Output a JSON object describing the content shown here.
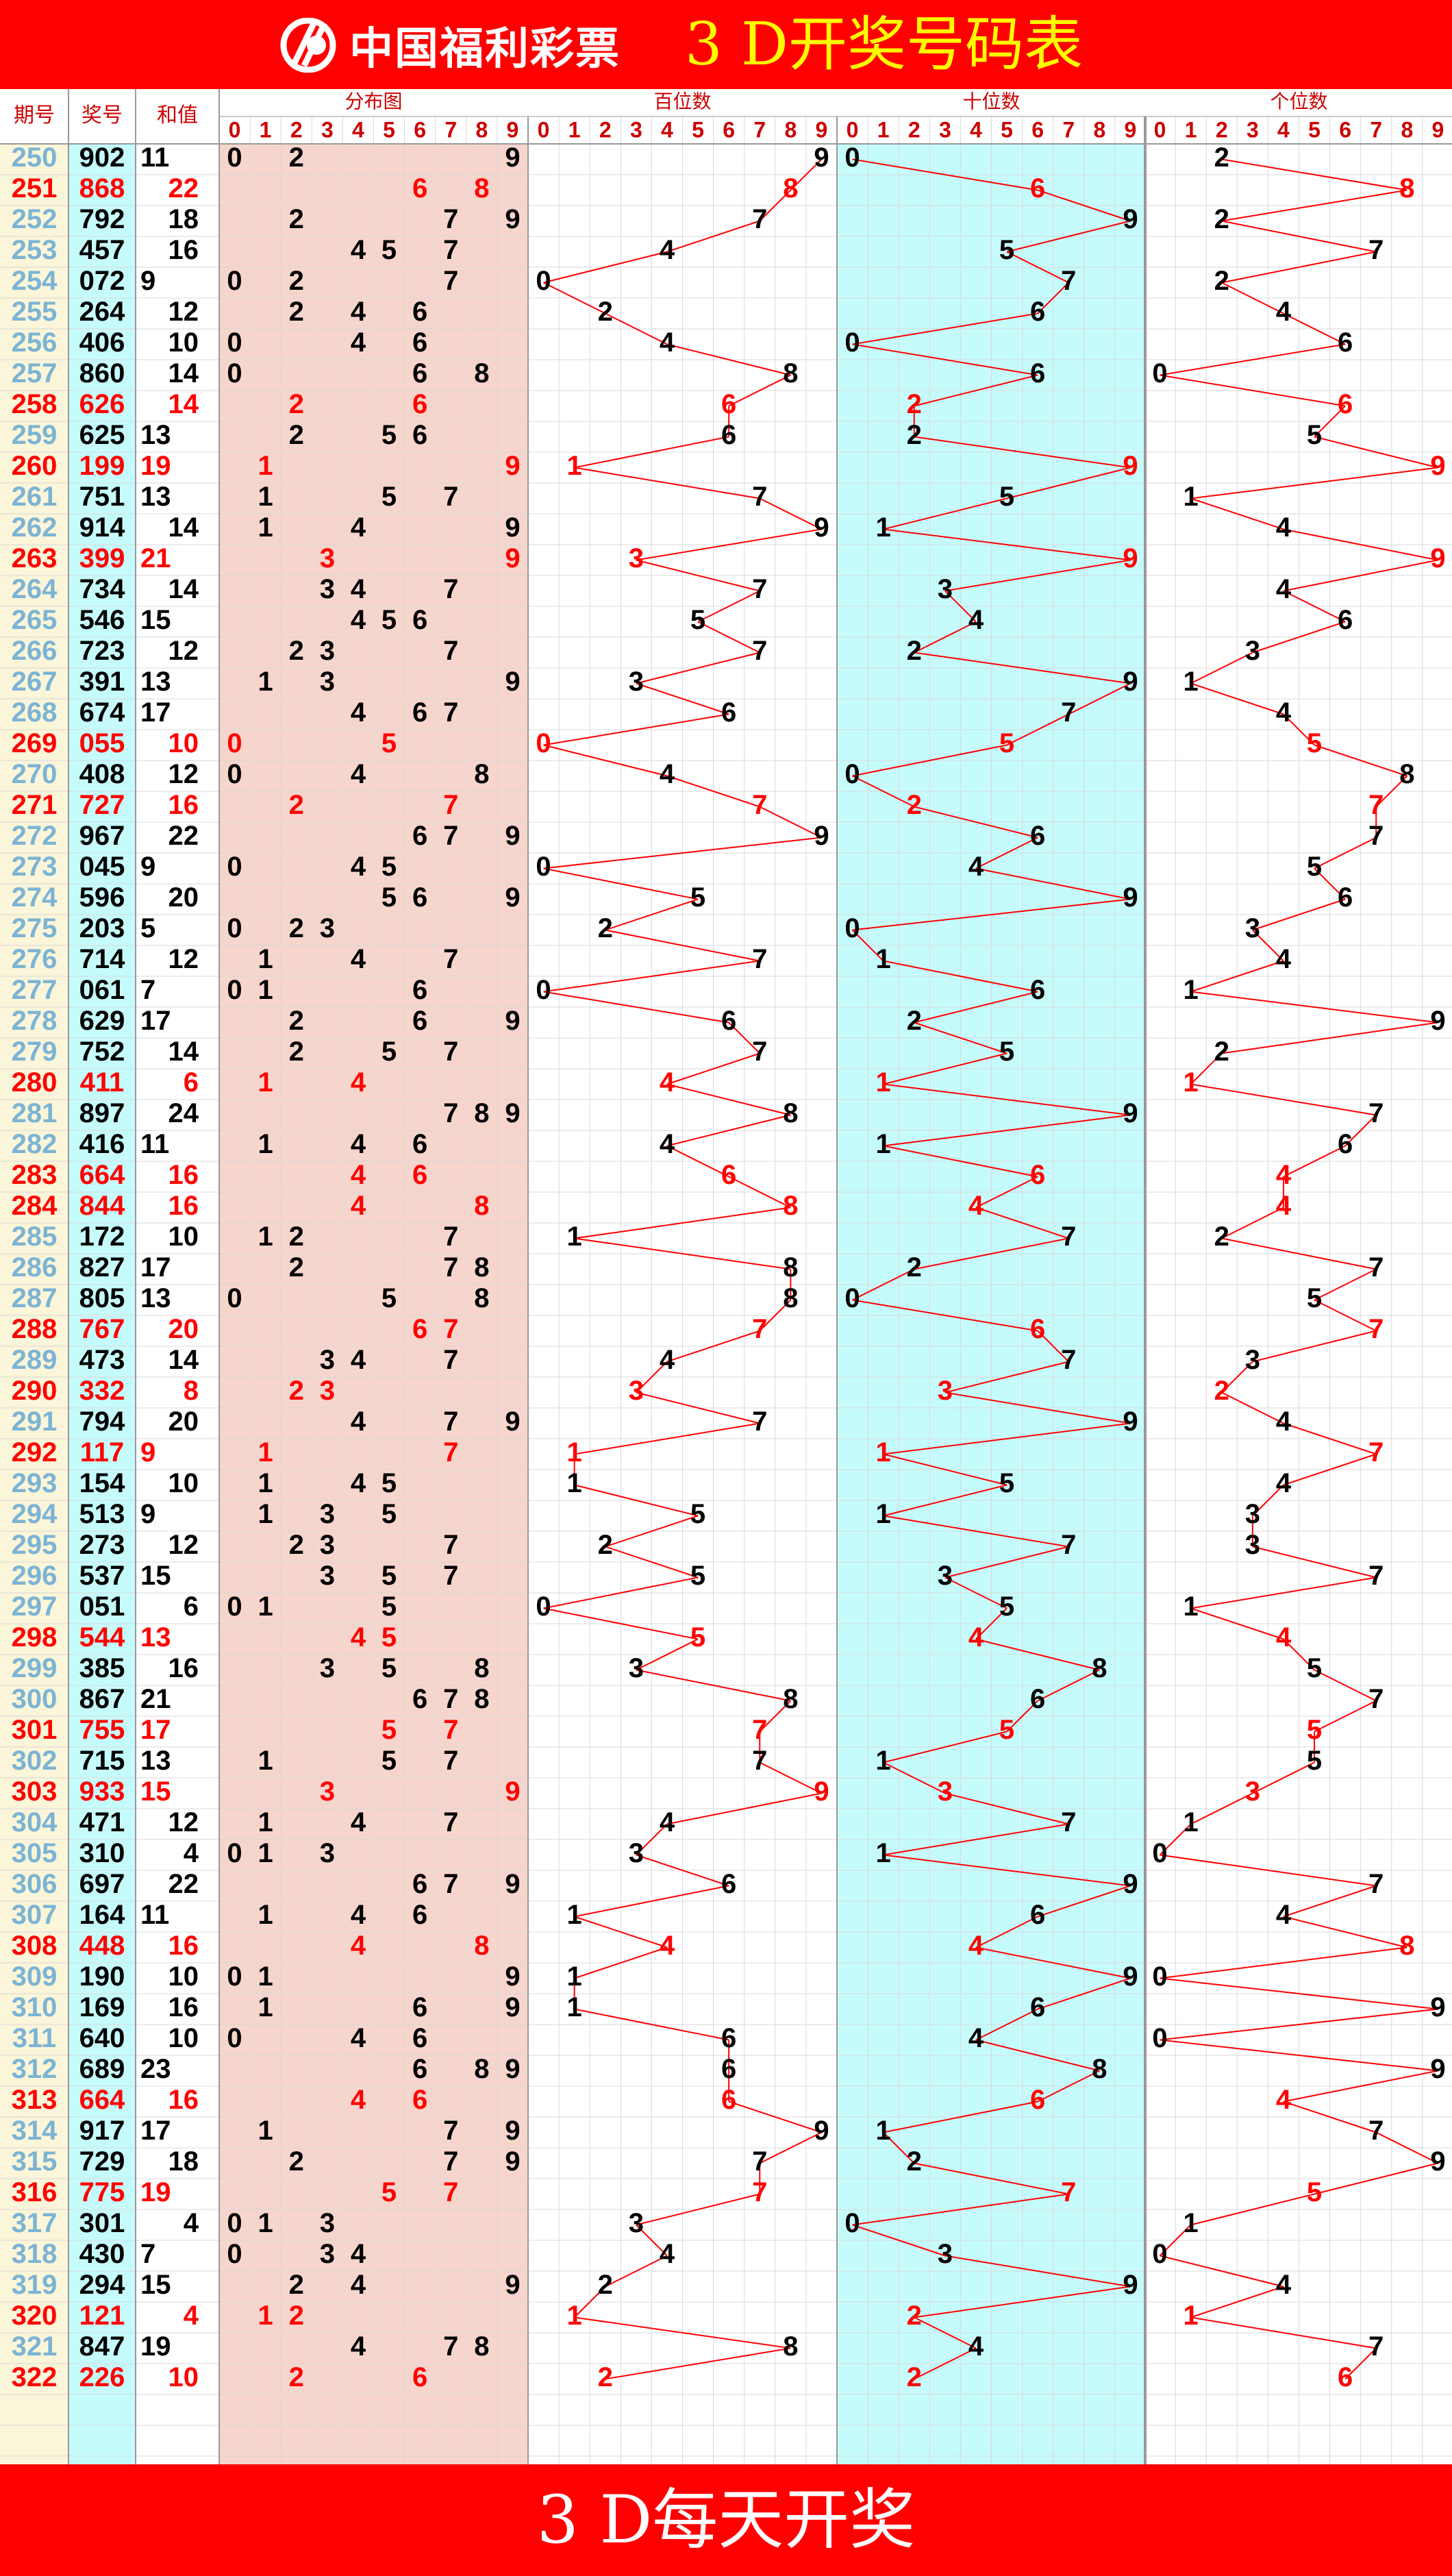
{
  "header": {
    "logo_text": "中国福利彩票",
    "title": "3 D开奖号码表"
  },
  "columns": {
    "issue": "期号",
    "number": "奖号",
    "sum": "和值",
    "distribution": "分布图",
    "hundreds": "百位数",
    "tens": "十位数",
    "units": "个位数",
    "digits": [
      "0",
      "1",
      "2",
      "3",
      "4",
      "5",
      "6",
      "7",
      "8",
      "9"
    ]
  },
  "footer": {
    "text": "3 D每天开奖"
  },
  "colors": {
    "red": "#ff0000",
    "black": "#000000",
    "issue": "#7bb4d4",
    "dist_bg": "#f6d5cd",
    "tens_bg": "#c6fbfb",
    "line": "#ff0000"
  },
  "chart_data": {
    "type": "table",
    "draws": [
      {
        "issue": "250",
        "number": "902",
        "sum": 11
      },
      {
        "issue": "251",
        "number": "868",
        "sum": 22
      },
      {
        "issue": "252",
        "number": "792",
        "sum": 18
      },
      {
        "issue": "253",
        "number": "457",
        "sum": 16
      },
      {
        "issue": "254",
        "number": "072",
        "sum": 9
      },
      {
        "issue": "255",
        "number": "264",
        "sum": 12
      },
      {
        "issue": "256",
        "number": "406",
        "sum": 10
      },
      {
        "issue": "257",
        "number": "860",
        "sum": 14
      },
      {
        "issue": "258",
        "number": "626",
        "sum": 14
      },
      {
        "issue": "259",
        "number": "625",
        "sum": 13
      },
      {
        "issue": "260",
        "number": "199",
        "sum": 19
      },
      {
        "issue": "261",
        "number": "751",
        "sum": 13
      },
      {
        "issue": "262",
        "number": "914",
        "sum": 14
      },
      {
        "issue": "263",
        "number": "399",
        "sum": 21
      },
      {
        "issue": "264",
        "number": "734",
        "sum": 14
      },
      {
        "issue": "265",
        "number": "546",
        "sum": 15
      },
      {
        "issue": "266",
        "number": "723",
        "sum": 12
      },
      {
        "issue": "267",
        "number": "391",
        "sum": 13
      },
      {
        "issue": "268",
        "number": "674",
        "sum": 17
      },
      {
        "issue": "269",
        "number": "055",
        "sum": 10
      },
      {
        "issue": "270",
        "number": "408",
        "sum": 12
      },
      {
        "issue": "271",
        "number": "727",
        "sum": 16
      },
      {
        "issue": "272",
        "number": "967",
        "sum": 22
      },
      {
        "issue": "273",
        "number": "045",
        "sum": 9
      },
      {
        "issue": "274",
        "number": "596",
        "sum": 20
      },
      {
        "issue": "275",
        "number": "203",
        "sum": 5
      },
      {
        "issue": "276",
        "number": "714",
        "sum": 12
      },
      {
        "issue": "277",
        "number": "061",
        "sum": 7
      },
      {
        "issue": "278",
        "number": "629",
        "sum": 17
      },
      {
        "issue": "279",
        "number": "752",
        "sum": 14
      },
      {
        "issue": "280",
        "number": "411",
        "sum": 6
      },
      {
        "issue": "281",
        "number": "897",
        "sum": 24
      },
      {
        "issue": "282",
        "number": "416",
        "sum": 11
      },
      {
        "issue": "283",
        "number": "664",
        "sum": 16
      },
      {
        "issue": "284",
        "number": "844",
        "sum": 16
      },
      {
        "issue": "285",
        "number": "172",
        "sum": 10
      },
      {
        "issue": "286",
        "number": "827",
        "sum": 17
      },
      {
        "issue": "287",
        "number": "805",
        "sum": 13
      },
      {
        "issue": "288",
        "number": "767",
        "sum": 20
      },
      {
        "issue": "289",
        "number": "473",
        "sum": 14
      },
      {
        "issue": "290",
        "number": "332",
        "sum": 8
      },
      {
        "issue": "291",
        "number": "794",
        "sum": 20
      },
      {
        "issue": "292",
        "number": "117",
        "sum": 9
      },
      {
        "issue": "293",
        "number": "154",
        "sum": 10
      },
      {
        "issue": "294",
        "number": "513",
        "sum": 9
      },
      {
        "issue": "295",
        "number": "273",
        "sum": 12
      },
      {
        "issue": "296",
        "number": "537",
        "sum": 15
      },
      {
        "issue": "297",
        "number": "051",
        "sum": 6
      },
      {
        "issue": "298",
        "number": "544",
        "sum": 13
      },
      {
        "issue": "299",
        "number": "385",
        "sum": 16
      },
      {
        "issue": "300",
        "number": "867",
        "sum": 21
      },
      {
        "issue": "301",
        "number": "755",
        "sum": 17
      },
      {
        "issue": "302",
        "number": "715",
        "sum": 13
      },
      {
        "issue": "303",
        "number": "933",
        "sum": 15
      },
      {
        "issue": "304",
        "number": "471",
        "sum": 12
      },
      {
        "issue": "305",
        "number": "310",
        "sum": 4
      },
      {
        "issue": "306",
        "number": "697",
        "sum": 22
      },
      {
        "issue": "307",
        "number": "164",
        "sum": 11
      },
      {
        "issue": "308",
        "number": "448",
        "sum": 16
      },
      {
        "issue": "309",
        "number": "190",
        "sum": 10
      },
      {
        "issue": "310",
        "number": "169",
        "sum": 16
      },
      {
        "issue": "311",
        "number": "640",
        "sum": 10
      },
      {
        "issue": "312",
        "number": "689",
        "sum": 23
      },
      {
        "issue": "313",
        "number": "664",
        "sum": 16
      },
      {
        "issue": "314",
        "number": "917",
        "sum": 17
      },
      {
        "issue": "315",
        "number": "729",
        "sum": 18
      },
      {
        "issue": "316",
        "number": "775",
        "sum": 19
      },
      {
        "issue": "317",
        "number": "301",
        "sum": 4
      },
      {
        "issue": "318",
        "number": "430",
        "sum": 7
      },
      {
        "issue": "319",
        "number": "294",
        "sum": 15
      },
      {
        "issue": "320",
        "number": "121",
        "sum": 4
      },
      {
        "issue": "321",
        "number": "847",
        "sum": 19
      },
      {
        "issue": "322",
        "number": "226",
        "sum": 10
      }
    ]
  }
}
